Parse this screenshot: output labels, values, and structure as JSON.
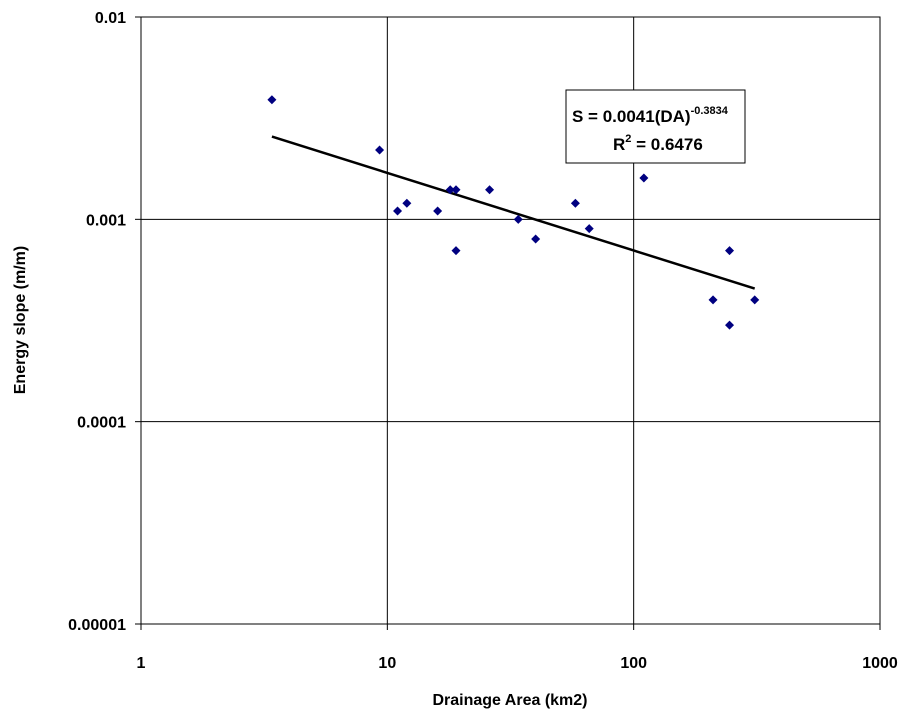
{
  "chart_data": {
    "type": "scatter",
    "x_scale": "log",
    "y_scale": "log",
    "xlabel": "Drainage Area (km2)",
    "ylabel": "Energy slope (m/m)",
    "xlim": [
      1,
      1000
    ],
    "ylim": [
      1e-05,
      0.01
    ],
    "x_ticks": [
      "1",
      "10",
      "100",
      "1000"
    ],
    "y_ticks": [
      "0.00001",
      "0.0001",
      "0.001",
      "0.01"
    ],
    "grid": true,
    "series": [
      {
        "marker_color": "#000080",
        "points": [
          [
            3.4,
            0.0039
          ],
          [
            9.3,
            0.0022
          ],
          [
            11.0,
            0.0011
          ],
          [
            12.0,
            0.0012
          ],
          [
            16.0,
            0.0011
          ],
          [
            18.0,
            0.0014
          ],
          [
            19.0,
            0.0014
          ],
          [
            19.0,
            0.0007
          ],
          [
            26.0,
            0.0014
          ],
          [
            34.0,
            0.001
          ],
          [
            40.0,
            0.0008
          ],
          [
            58.0,
            0.0012
          ],
          [
            66.0,
            0.0009
          ],
          [
            110.0,
            0.0016
          ],
          [
            210.0,
            0.0004
          ],
          [
            245.0,
            0.0007
          ],
          [
            245.0,
            0.0003
          ],
          [
            310.0,
            0.0004
          ]
        ]
      }
    ],
    "trendline": {
      "type": "power",
      "coefficient": 0.0041,
      "exponent": -0.3834,
      "x_range": [
        3.4,
        310
      ],
      "color": "#000000"
    },
    "equation": {
      "line1_prefix": "S = 0.0041(DA)",
      "line1_sup": "-0.3834",
      "line2_prefix": "R",
      "line2_sup": "2",
      "line2_suffix": " = 0.6476"
    }
  }
}
